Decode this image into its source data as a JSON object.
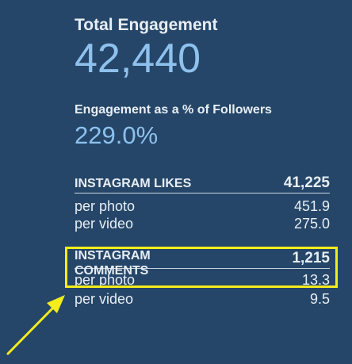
{
  "engagement": {
    "total_label": "Total Engagement",
    "total_value": "42,440",
    "pct_label": "Engagement as a % of Followers",
    "pct_value": "229.0%"
  },
  "likes": {
    "heading": "INSTAGRAM LIKES",
    "total": "41,225",
    "per_photo_label": "per photo",
    "per_photo_value": "451.9",
    "per_video_label": "per video",
    "per_video_value": "275.0"
  },
  "comments": {
    "heading": "INSTAGRAM COMMENTS",
    "total": "1,215",
    "per_photo_label": "per photo",
    "per_photo_value": "13.3",
    "per_video_label": "per video",
    "per_video_value": "9.5"
  },
  "colors": {
    "background": "#254668",
    "accent_value": "#8ec1ee",
    "highlight": "#f4ec1c"
  },
  "annotation": {
    "arrow_icon": "arrow-up-right-icon"
  }
}
